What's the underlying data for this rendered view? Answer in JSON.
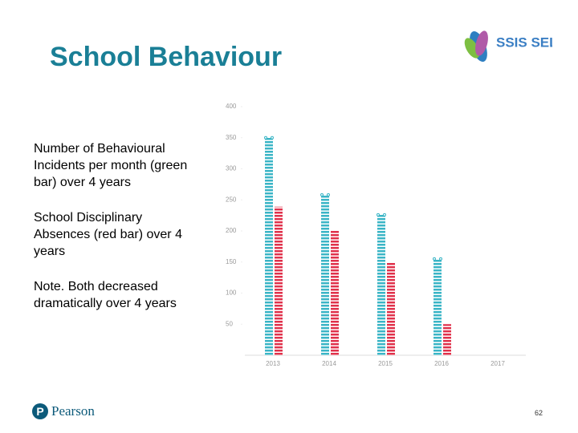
{
  "header": {
    "title": "School Behaviour",
    "logo": "SSIS SEL"
  },
  "body": {
    "paragraphs": [
      "Number of Behavioural Incidents per month (green bar) over 4 years",
      "School Disciplinary Absences (red bar) over 4 years",
      "Note. Both decreased dramatically over 4 years"
    ]
  },
  "chart_data": {
    "type": "bar",
    "categories": [
      "2013",
      "2014",
      "2015",
      "2016",
      "2017"
    ],
    "series": [
      {
        "name": "Behavioural Incidents",
        "color": "#3ab5c6",
        "values": [
          350,
          258,
          226,
          155,
          null
        ]
      },
      {
        "name": "Disciplinary Absences",
        "color": "#e0314b",
        "values": [
          239,
          201,
          149,
          50,
          null
        ]
      }
    ],
    "ylim": [
      0,
      400
    ],
    "yticks": [
      50,
      100,
      150,
      200,
      250,
      300,
      350,
      400
    ]
  },
  "footer": {
    "logo": "Pearson",
    "page_number": "62"
  }
}
